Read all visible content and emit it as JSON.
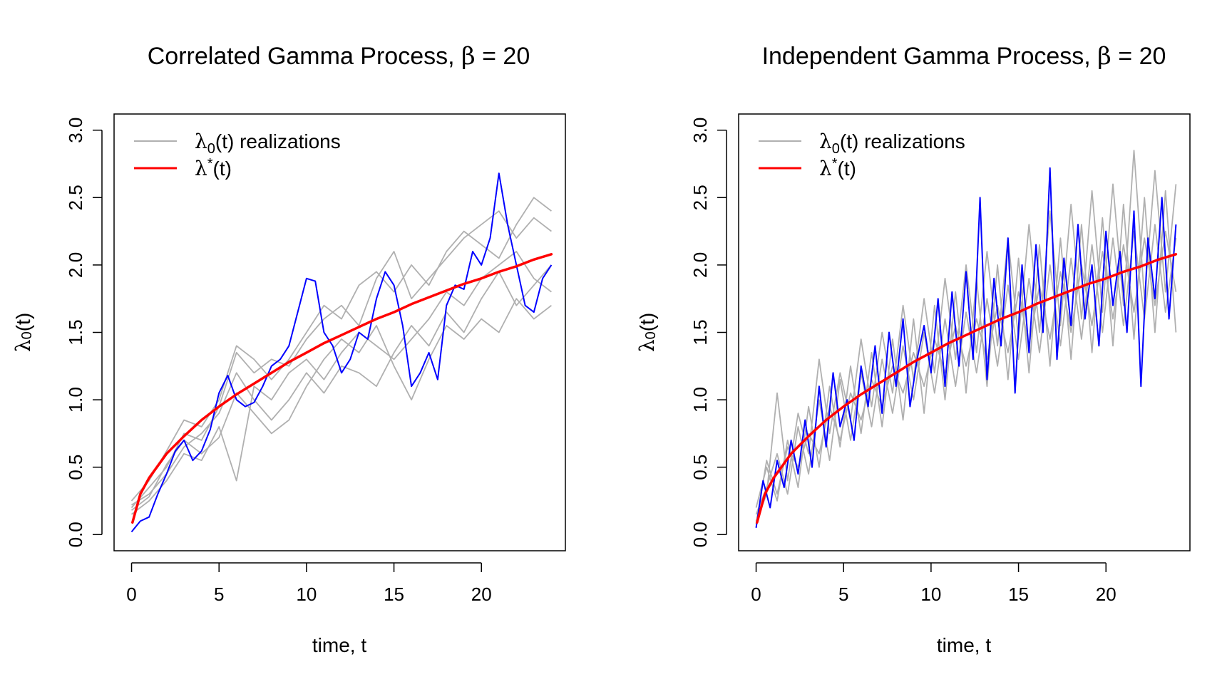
{
  "chart_data": [
    {
      "type": "line",
      "title_prefix": "Correlated Gamma Process, ",
      "title_symbol": "β",
      "title_suffix": " = 20",
      "xlabel": "time, t",
      "ylabel_main": "λ",
      "ylabel_sub": "0",
      "ylabel_tail": "(t)",
      "xlim": [
        -1,
        24.8
      ],
      "ylim": [
        -0.12,
        3.12
      ],
      "xticks": [
        0,
        5,
        10,
        15,
        20
      ],
      "yticks": [
        0.0,
        0.5,
        1.0,
        1.5,
        2.0,
        2.5,
        3.0
      ],
      "ytick_labels": [
        "0.0",
        "0.5",
        "1.0",
        "1.5",
        "2.0",
        "2.5",
        "3.0"
      ],
      "grid": false,
      "legend_position": "top-left",
      "legend": [
        {
          "main": "λ",
          "sub": "0",
          "sup": "",
          "tail": "(t) realizations",
          "color": "#b0b0b0"
        },
        {
          "main": "λ",
          "sub": "",
          "sup": "*",
          "tail": "(t)",
          "color": "#ff0000"
        }
      ],
      "colors": {
        "realizations": "#b0b0b0",
        "highlight": "#0000ff",
        "mean": "#ff0000"
      },
      "mean_curve": {
        "x": [
          0.05,
          0.5,
          1,
          2,
          3,
          4,
          5,
          6,
          7,
          8,
          9,
          10,
          11,
          12,
          13,
          14,
          15,
          16,
          17,
          18,
          19,
          20,
          21,
          22,
          23,
          24
        ],
        "y": [
          0.09,
          0.3,
          0.42,
          0.6,
          0.73,
          0.85,
          0.95,
          1.04,
          1.12,
          1.2,
          1.28,
          1.35,
          1.42,
          1.48,
          1.54,
          1.6,
          1.65,
          1.71,
          1.76,
          1.81,
          1.86,
          1.9,
          1.95,
          1.99,
          2.04,
          2.08
        ]
      },
      "highlight": {
        "x": [
          0,
          0.5,
          1,
          1.5,
          2,
          2.5,
          3,
          3.5,
          4,
          4.5,
          5,
          5.5,
          6,
          6.5,
          7,
          7.5,
          8,
          8.5,
          9,
          9.5,
          10,
          10.5,
          11,
          11.5,
          12,
          12.5,
          13,
          13.5,
          14,
          14.5,
          15,
          15.5,
          16,
          16.5,
          17,
          17.5,
          18,
          18.5,
          19,
          19.5,
          20,
          20.5,
          21,
          21.5,
          22,
          22.5,
          23,
          23.5,
          24
        ],
        "y": [
          0.02,
          0.1,
          0.13,
          0.3,
          0.45,
          0.62,
          0.7,
          0.55,
          0.62,
          0.78,
          1.05,
          1.18,
          1.0,
          0.95,
          0.98,
          1.1,
          1.25,
          1.3,
          1.4,
          1.65,
          1.9,
          1.88,
          1.5,
          1.4,
          1.2,
          1.3,
          1.5,
          1.45,
          1.75,
          1.95,
          1.85,
          1.55,
          1.1,
          1.2,
          1.35,
          1.15,
          1.7,
          1.85,
          1.82,
          2.1,
          2.0,
          2.2,
          2.68,
          2.3,
          2.0,
          1.7,
          1.65,
          1.9,
          2.0
        ]
      },
      "realizations": [
        {
          "x": [
            0,
            1,
            2,
            3,
            4,
            5,
            6,
            7,
            8,
            9,
            10,
            11,
            12,
            13,
            14,
            15,
            16,
            17,
            18,
            19,
            20,
            21,
            22,
            23,
            24
          ],
          "y": [
            0.2,
            0.35,
            0.5,
            0.75,
            0.7,
            0.95,
            1.35,
            1.2,
            1.3,
            1.25,
            1.45,
            1.6,
            1.7,
            1.55,
            1.9,
            2.1,
            1.75,
            1.9,
            2.05,
            2.2,
            2.3,
            2.4,
            2.2,
            2.35,
            2.25
          ]
        },
        {
          "x": [
            0,
            1,
            2,
            3,
            4,
            5,
            6,
            7,
            8,
            9,
            10,
            11,
            12,
            13,
            14,
            15,
            16,
            17,
            18,
            19,
            20,
            21,
            22,
            23,
            24
          ],
          "y": [
            0.15,
            0.25,
            0.4,
            0.6,
            0.55,
            0.8,
            0.4,
            1.1,
            1.0,
            1.2,
            1.3,
            1.15,
            1.35,
            1.5,
            1.4,
            1.3,
            1.45,
            1.6,
            1.8,
            1.7,
            1.9,
            2.0,
            2.1,
            1.9,
            1.8
          ]
        },
        {
          "x": [
            0,
            1,
            2,
            3,
            4,
            5,
            6,
            7,
            8,
            9,
            10,
            11,
            12,
            13,
            14,
            15,
            16,
            17,
            18,
            19,
            20,
            21,
            22,
            23,
            24
          ],
          "y": [
            0.22,
            0.3,
            0.45,
            0.65,
            0.75,
            0.9,
            1.2,
            1.0,
            0.85,
            1.0,
            1.2,
            1.05,
            1.25,
            1.2,
            1.1,
            1.35,
            1.55,
            1.4,
            1.65,
            1.5,
            1.75,
            1.95,
            1.7,
            1.85,
            2.0
          ]
        },
        {
          "x": [
            0,
            1,
            2,
            3,
            4,
            5,
            6,
            7,
            8,
            9,
            10,
            11,
            12,
            13,
            14,
            15,
            16,
            17,
            18,
            19,
            20,
            21,
            22,
            23,
            24
          ],
          "y": [
            0.18,
            0.28,
            0.52,
            0.7,
            0.6,
            0.72,
            1.05,
            0.9,
            0.75,
            0.85,
            1.1,
            1.3,
            1.45,
            1.35,
            1.55,
            1.25,
            1.0,
            1.3,
            1.55,
            1.45,
            1.6,
            1.5,
            1.75,
            1.6,
            1.7
          ]
        },
        {
          "x": [
            0,
            1,
            2,
            3,
            4,
            5,
            6,
            7,
            8,
            9,
            10,
            11,
            12,
            13,
            14,
            15,
            16,
            17,
            18,
            19,
            20,
            21,
            22,
            23,
            24
          ],
          "y": [
            0.25,
            0.4,
            0.62,
            0.85,
            0.8,
            1.0,
            1.4,
            1.3,
            1.15,
            1.3,
            1.5,
            1.7,
            1.6,
            1.85,
            1.95,
            1.8,
            2.0,
            1.85,
            2.1,
            2.25,
            2.15,
            2.05,
            2.3,
            2.5,
            2.4
          ]
        }
      ]
    },
    {
      "type": "line",
      "title_prefix": "Independent Gamma Process, ",
      "title_symbol": "β",
      "title_suffix": " = 20",
      "xlabel": "time, t",
      "ylabel_main": "λ",
      "ylabel_sub": "0",
      "ylabel_tail": "(t)",
      "xlim": [
        -1,
        24.8
      ],
      "ylim": [
        -0.12,
        3.12
      ],
      "xticks": [
        0,
        5,
        10,
        15,
        20
      ],
      "yticks": [
        0.0,
        0.5,
        1.0,
        1.5,
        2.0,
        2.5,
        3.0
      ],
      "ytick_labels": [
        "0.0",
        "0.5",
        "1.0",
        "1.5",
        "2.0",
        "2.5",
        "3.0"
      ],
      "grid": false,
      "legend_position": "top-left",
      "legend": [
        {
          "main": "λ",
          "sub": "0",
          "sup": "",
          "tail": "(t) realizations",
          "color": "#b0b0b0"
        },
        {
          "main": "λ",
          "sub": "",
          "sup": "*",
          "tail": "(t)",
          "color": "#ff0000"
        }
      ],
      "colors": {
        "realizations": "#b0b0b0",
        "highlight": "#0000ff",
        "mean": "#ff0000"
      },
      "mean_curve": {
        "x": [
          0.05,
          0.5,
          1,
          2,
          3,
          4,
          5,
          6,
          7,
          8,
          9,
          10,
          11,
          12,
          13,
          14,
          15,
          16,
          17,
          18,
          19,
          20,
          21,
          22,
          23,
          24
        ],
        "y": [
          0.09,
          0.3,
          0.42,
          0.6,
          0.73,
          0.85,
          0.95,
          1.04,
          1.12,
          1.2,
          1.28,
          1.35,
          1.42,
          1.48,
          1.54,
          1.6,
          1.65,
          1.71,
          1.76,
          1.81,
          1.86,
          1.9,
          1.95,
          1.99,
          2.04,
          2.08
        ]
      },
      "highlight": {
        "x": [
          0,
          0.4,
          0.8,
          1.2,
          1.6,
          2.0,
          2.4,
          2.8,
          3.2,
          3.6,
          4.0,
          4.4,
          4.8,
          5.2,
          5.6,
          6.0,
          6.4,
          6.8,
          7.2,
          7.6,
          8.0,
          8.4,
          8.8,
          9.2,
          9.6,
          10.0,
          10.4,
          10.8,
          11.2,
          11.6,
          12.0,
          12.4,
          12.8,
          13.2,
          13.6,
          14.0,
          14.4,
          14.8,
          15.2,
          15.6,
          16.0,
          16.4,
          16.8,
          17.2,
          17.6,
          18.0,
          18.4,
          18.8,
          19.2,
          19.6,
          20.0,
          20.4,
          20.8,
          21.2,
          21.6,
          22.0,
          22.4,
          22.8,
          23.2,
          23.6,
          24.0
        ],
        "y": [
          0.05,
          0.4,
          0.2,
          0.55,
          0.35,
          0.7,
          0.45,
          0.85,
          0.5,
          1.1,
          0.65,
          1.2,
          0.8,
          1.0,
          0.7,
          1.25,
          0.95,
          1.4,
          0.9,
          1.5,
          1.1,
          1.6,
          0.95,
          1.3,
          1.55,
          1.2,
          1.75,
          1.1,
          1.8,
          1.25,
          1.95,
          1.3,
          2.5,
          1.15,
          1.9,
          1.4,
          2.2,
          1.05,
          2.0,
          1.35,
          2.15,
          1.5,
          2.72,
          1.3,
          2.05,
          1.55,
          2.3,
          1.6,
          2.0,
          1.4,
          2.25,
          1.7,
          2.1,
          1.5,
          2.4,
          1.1,
          2.2,
          1.75,
          2.5,
          1.6,
          2.3
        ]
      },
      "realizations": [
        {
          "x": [
            0,
            0.6,
            1.2,
            1.8,
            2.4,
            3.0,
            3.6,
            4.2,
            4.8,
            5.4,
            6.0,
            6.6,
            7.2,
            7.8,
            8.4,
            9.0,
            9.6,
            10.2,
            10.8,
            11.4,
            12.0,
            12.6,
            13.2,
            13.8,
            14.4,
            15.0,
            15.6,
            16.2,
            16.8,
            17.4,
            18.0,
            18.6,
            19.2,
            19.8,
            20.4,
            21.0,
            21.6,
            22.2,
            22.8,
            23.4,
            24.0
          ],
          "y": [
            0.1,
            0.3,
            1.05,
            0.4,
            0.9,
            0.6,
            1.3,
            0.75,
            1.2,
            0.85,
            1.45,
            0.95,
            1.5,
            1.05,
            1.7,
            1.15,
            1.75,
            1.2,
            1.9,
            1.3,
            2.0,
            1.35,
            2.1,
            1.4,
            2.2,
            1.45,
            2.3,
            1.5,
            2.4,
            1.55,
            2.45,
            1.6,
            2.55,
            1.65,
            2.6,
            1.7,
            2.85,
            1.75,
            2.7,
            1.8,
            2.6
          ]
        },
        {
          "x": [
            0,
            0.6,
            1.2,
            1.8,
            2.4,
            3.0,
            3.6,
            4.2,
            4.8,
            5.4,
            6.0,
            6.6,
            7.2,
            7.8,
            8.4,
            9.0,
            9.6,
            10.2,
            10.8,
            11.4,
            12.0,
            12.6,
            13.2,
            13.8,
            14.4,
            15.0,
            15.6,
            16.2,
            16.8,
            17.4,
            18.0,
            18.6,
            19.2,
            19.8,
            20.4,
            21.0,
            21.6,
            22.2,
            22.8,
            23.4,
            24.0
          ],
          "y": [
            0.2,
            0.5,
            0.25,
            0.7,
            0.35,
            0.95,
            0.5,
            1.1,
            0.65,
            1.25,
            0.75,
            1.35,
            0.8,
            1.45,
            0.85,
            1.6,
            0.9,
            1.7,
            1.0,
            1.8,
            1.05,
            1.9,
            1.1,
            2.0,
            1.15,
            2.05,
            1.2,
            2.15,
            1.25,
            2.2,
            1.3,
            2.3,
            1.35,
            2.35,
            1.4,
            2.45,
            1.45,
            2.5,
            1.5,
            2.55,
            1.5
          ]
        },
        {
          "x": [
            0,
            0.6,
            1.2,
            1.8,
            2.4,
            3.0,
            3.6,
            4.2,
            4.8,
            5.4,
            6.0,
            6.6,
            7.2,
            7.8,
            8.4,
            9.0,
            9.6,
            10.2,
            10.8,
            11.4,
            12.0,
            12.6,
            13.2,
            13.8,
            14.4,
            15.0,
            15.6,
            16.2,
            16.8,
            17.4,
            18.0,
            18.6,
            19.2,
            19.8,
            20.4,
            21.0,
            21.6,
            22.2,
            22.8,
            23.4,
            24.0
          ],
          "y": [
            0.15,
            0.35,
            0.6,
            0.3,
            0.8,
            0.45,
            1.0,
            0.55,
            1.15,
            0.7,
            1.2,
            0.8,
            1.3,
            0.9,
            1.4,
            1.0,
            1.5,
            1.05,
            1.6,
            1.1,
            1.65,
            1.2,
            1.75,
            1.25,
            1.85,
            1.3,
            1.9,
            1.35,
            2.0,
            1.4,
            2.05,
            1.45,
            2.15,
            1.5,
            2.2,
            1.55,
            2.25,
            1.6,
            2.3,
            1.65,
            2.2
          ]
        },
        {
          "x": [
            0,
            0.6,
            1.2,
            1.8,
            2.4,
            3.0,
            3.6,
            4.2,
            4.8,
            5.4,
            6.0,
            6.6,
            7.2,
            7.8,
            8.4,
            9.0,
            9.6,
            10.2,
            10.8,
            11.4,
            12.0,
            12.6,
            13.2,
            13.8,
            14.4,
            15.0,
            15.6,
            16.2,
            16.8,
            17.4,
            18.0,
            18.6,
            19.2,
            19.8,
            20.4,
            21.0,
            21.6,
            22.2,
            22.8,
            23.4,
            24.0
          ],
          "y": [
            0.08,
            0.55,
            0.3,
            0.65,
            0.5,
            0.75,
            0.6,
            0.95,
            0.7,
            1.05,
            0.85,
            1.15,
            0.95,
            1.25,
            1.05,
            1.35,
            1.1,
            1.45,
            1.2,
            1.55,
            1.25,
            1.6,
            1.3,
            1.7,
            1.35,
            1.8,
            1.4,
            1.85,
            1.45,
            1.95,
            1.5,
            2.0,
            1.55,
            2.1,
            1.6,
            2.15,
            1.65,
            2.2,
            1.7,
            2.25,
            1.8
          ]
        }
      ]
    }
  ]
}
